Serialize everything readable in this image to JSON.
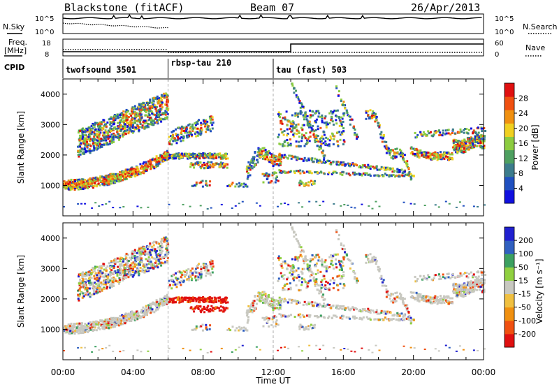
{
  "header": {
    "station": "Blackstone (fitACF)",
    "beam": "Beam 07",
    "date": "26/Apr/2013"
  },
  "left_labels": {
    "nsky": "N.Sky",
    "nsky_hi": "10^5",
    "nsky_lo": "10^0",
    "freq": "Freq.",
    "freq_unit": "[MHz]",
    "freq_hi": "18",
    "freq_lo": "8",
    "cpid": "CPID"
  },
  "right_labels": {
    "nsearch": "N.Search",
    "nsearch_hi": "10^5",
    "nsearch_lo": "10^0",
    "nave": "Nave",
    "nave_hi": "60",
    "nave_lo": "0"
  },
  "cpid_segments": [
    {
      "label": "twofsound 3501",
      "start_hour": 0
    },
    {
      "label": "rbsp-tau 210",
      "start_hour": 6
    },
    {
      "label": "tau (fast) 503",
      "start_hour": 12
    }
  ],
  "colors": {
    "power": [
      "#1010e0",
      "#2050c0",
      "#3c7c8c",
      "#4ea060",
      "#8ccc40",
      "#f0d020",
      "#f09010",
      "#f05010",
      "#e01010"
    ],
    "velocity": [
      "#e01010",
      "#f05010",
      "#f09010",
      "#f0c040",
      "#c8c8c0",
      "#90d040",
      "#3ca060",
      "#3060c0",
      "#2020d0"
    ]
  },
  "chart_data": [
    {
      "type": "heatmap",
      "panel": "power",
      "ylabel": "Slant Range [km]",
      "yticks": [
        1000,
        2000,
        3000,
        4000
      ],
      "ylim": [
        0,
        4500
      ],
      "xlim": [
        0,
        24
      ],
      "colorbar": {
        "label": "Power [dB]",
        "ticks": [
          "28",
          "24",
          "20",
          "16",
          "12",
          "8",
          "4"
        ],
        "range": [
          0,
          30
        ]
      }
    },
    {
      "type": "heatmap",
      "panel": "velocity",
      "ylabel": "Slant Range [km]",
      "yticks": [
        1000,
        2000,
        3000,
        4000
      ],
      "ylim": [
        0,
        4500
      ],
      "xlim": [
        0,
        24
      ],
      "xlabel": "Time UT",
      "xtick_labels": [
        "00:00",
        "04:00",
        "08:00",
        "12:00",
        "16:00",
        "20:00",
        "00:00"
      ],
      "colorbar": {
        "label": "Velocity [m s⁻¹]",
        "ticks": [
          "200",
          "100",
          "50",
          "15",
          "-15",
          "-50",
          "-100",
          "-200"
        ],
        "range": [
          -250,
          250
        ]
      }
    }
  ]
}
